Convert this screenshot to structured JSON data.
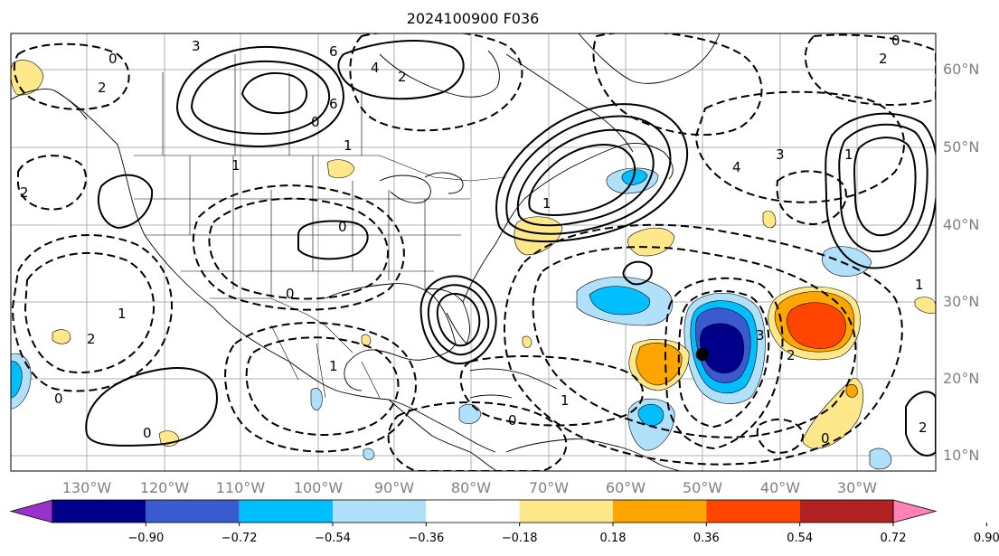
{
  "title": "2024100900 F036",
  "map": {
    "lon_labels": [
      "130°W",
      "120°W",
      "110°W",
      "100°W",
      "90°W",
      "80°W",
      "70°W",
      "60°W",
      "50°W",
      "40°W",
      "30°W"
    ],
    "lat_labels": [
      "60°N",
      "50°N",
      "40°N",
      "30°N",
      "20°N",
      "10°N"
    ],
    "gridlines": true,
    "coastlines_color": "#000000",
    "contour_style": "solid = positive, dashed = negative",
    "contour_labels": [
      "0",
      "1",
      "2",
      "3",
      "4",
      "6",
      "2",
      "1",
      "0",
      "4",
      "3",
      "1",
      "0",
      "2",
      "1",
      "0",
      "1",
      "0",
      "0",
      "2",
      "3",
      "2",
      "0",
      "1",
      "2",
      "0",
      "1",
      "2",
      "1",
      "0",
      "6"
    ]
  },
  "colorbar": {
    "extend": "both",
    "ticks": [
      "−0.90",
      "−0.72",
      "−0.54",
      "−0.36",
      "−0.18",
      "0.18",
      "0.36",
      "0.54",
      "0.72",
      "0.90"
    ],
    "colors": [
      "#9932cc",
      "#00008b",
      "#3a5bd0",
      "#00bfff",
      "#b0e0fa",
      "#ffffff",
      "#ffe88a",
      "#ffa500",
      "#ff4500",
      "#b22222",
      "#ff82b4"
    ]
  },
  "shaded_features": [
    {
      "name": "negative-core-mid-atlantic",
      "color": "#00008b"
    },
    {
      "name": "positive-core-east-atlantic",
      "color": "#ff4500"
    }
  ]
}
